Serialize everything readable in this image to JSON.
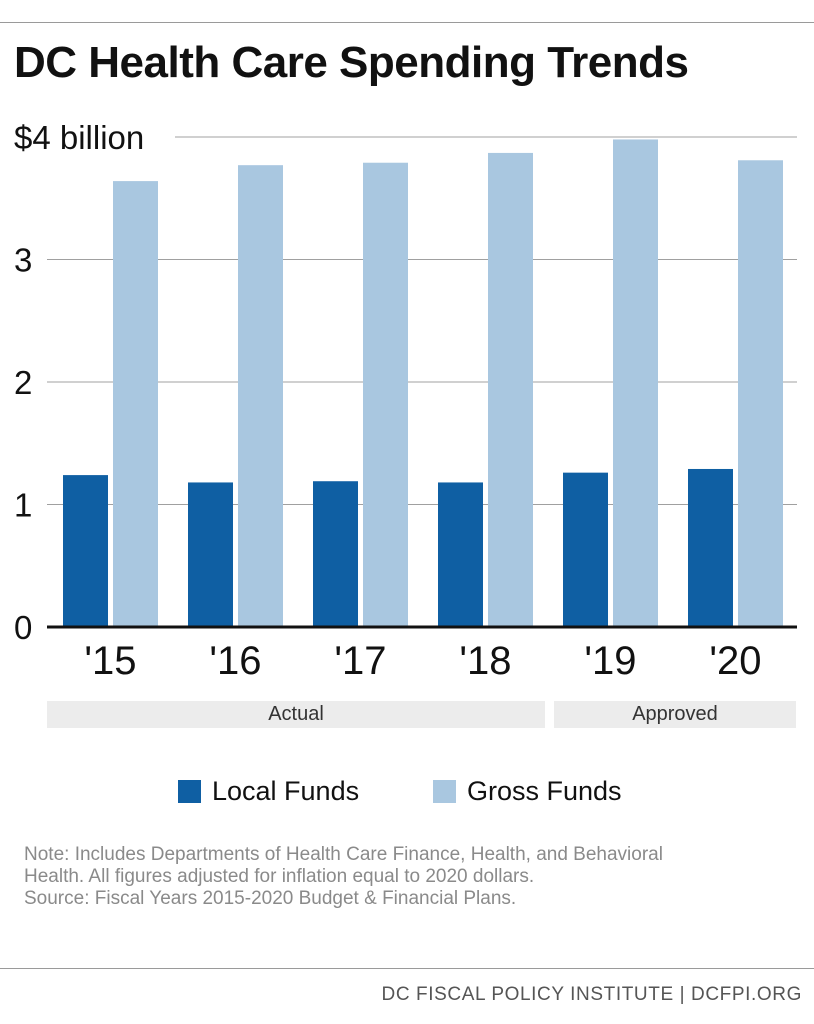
{
  "title": "DC Health Care Spending Trends",
  "colors": {
    "local": "#0f5fa3",
    "gross": "#a9c7e0",
    "grid": "#a0a0a0",
    "axis": "#111111"
  },
  "chart_data": {
    "type": "bar",
    "title": "DC Health Care Spending Trends",
    "categories": [
      "'15",
      "'16",
      "'17",
      "'18",
      "'19",
      "'20"
    ],
    "series": [
      {
        "name": "Local Funds",
        "values": [
          1.24,
          1.18,
          1.19,
          1.18,
          1.26,
          1.29
        ]
      },
      {
        "name": "Gross Funds",
        "values": [
          3.64,
          3.77,
          3.79,
          3.87,
          3.98,
          3.81
        ]
      }
    ],
    "ylim": [
      0,
      4
    ],
    "yticks": [
      "0",
      "1",
      "2",
      "3",
      "$4 billion"
    ],
    "ytick_values": [
      0,
      1,
      2,
      3,
      4
    ],
    "xlabel": "",
    "ylabel": "",
    "grid": true,
    "groups": [
      {
        "label": "Actual",
        "categories": [
          "'15",
          "'16",
          "'17",
          "'18"
        ]
      },
      {
        "label": "Approved",
        "categories": [
          "'19",
          "'20"
        ]
      }
    ],
    "legend_position": "bottom"
  },
  "legend": {
    "local": "Local Funds",
    "gross": "Gross Funds"
  },
  "note": {
    "line1": "Note: Includes Departments of Health Care Finance, Health, and Behavioral",
    "line2": "Health. All figures adjusted for inflation equal to 2020 dollars.",
    "line3": "Source: Fiscal Years 2015-2020 Budget & Financial Plans."
  },
  "footer": "DC FISCAL POLICY INSTITUTE | DCFPI.ORG"
}
